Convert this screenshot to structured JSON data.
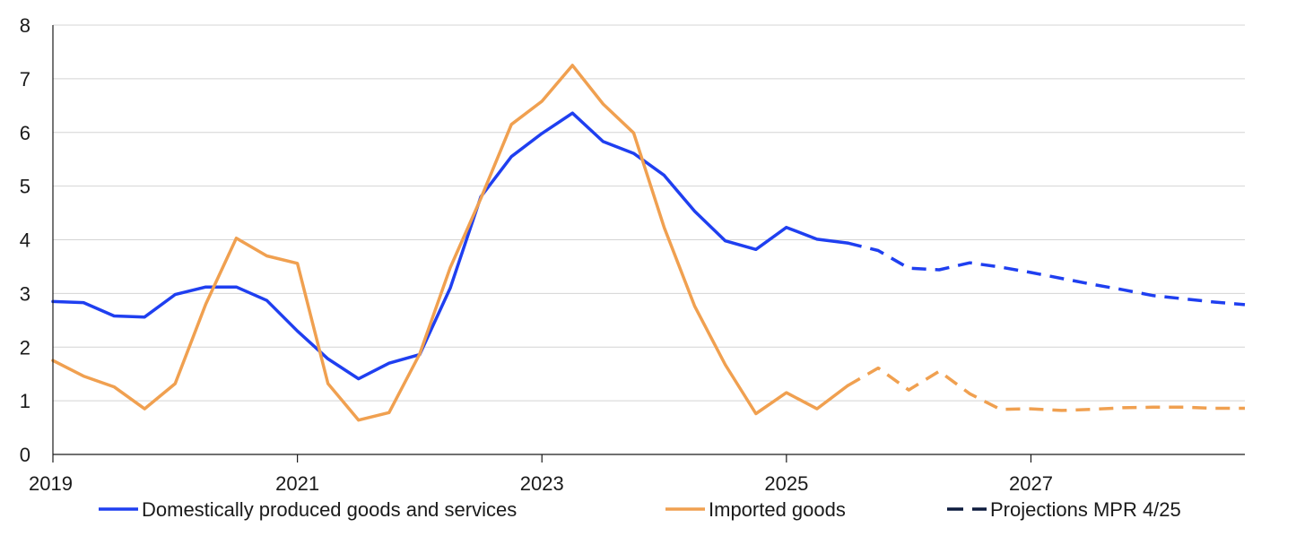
{
  "chart_data": {
    "type": "line",
    "title": "",
    "xlabel": "",
    "ylabel": "",
    "xlim": [
      2019.0,
      2028.75
    ],
    "ylim": [
      0,
      8
    ],
    "y_ticks": [
      0,
      1,
      2,
      3,
      4,
      5,
      6,
      7,
      8
    ],
    "x_ticks": [
      2019,
      2021,
      2023,
      2025,
      2027
    ],
    "x_tick_labels": [
      "2019",
      "2021",
      "2023",
      "2025",
      "2027"
    ],
    "grid": "horizontal",
    "legend_position": "bottom",
    "projection_start": 2025.5,
    "colors": {
      "domestic": "#1f3ff0",
      "imported": "#f0a050",
      "projection_legend": "#0d1b3e",
      "grid": "#d4d4d4",
      "axis": "#1a1a1a"
    },
    "series": [
      {
        "name": "Domestically produced goods and services",
        "color": "#1f3ff0",
        "x": [
          2019.0,
          2019.25,
          2019.5,
          2019.75,
          2020.0,
          2020.25,
          2020.5,
          2020.75,
          2021.0,
          2021.25,
          2021.5,
          2021.75,
          2022.0,
          2022.25,
          2022.5,
          2022.75,
          2023.0,
          2023.25,
          2023.5,
          2023.75,
          2024.0,
          2024.25,
          2024.5,
          2024.75,
          2025.0,
          2025.25,
          2025.5,
          2025.75,
          2026.0,
          2026.25,
          2026.5,
          2026.75,
          2027.0,
          2027.25,
          2027.5,
          2027.75,
          2028.0,
          2028.25,
          2028.5,
          2028.75
        ],
        "values": [
          2.85,
          2.83,
          2.58,
          2.56,
          2.98,
          3.12,
          3.12,
          2.87,
          2.3,
          1.78,
          1.41,
          1.7,
          1.86,
          3.1,
          4.8,
          5.55,
          5.98,
          6.36,
          5.83,
          5.61,
          5.2,
          4.53,
          3.98,
          3.82,
          4.23,
          4.01,
          3.94,
          3.8,
          3.47,
          3.44,
          3.57,
          3.49,
          3.39,
          3.28,
          3.17,
          3.07,
          2.96,
          2.9,
          2.84,
          2.79
        ]
      },
      {
        "name": "Imported goods",
        "color": "#f0a050",
        "x": [
          2019.0,
          2019.25,
          2019.5,
          2019.75,
          2020.0,
          2020.25,
          2020.5,
          2020.75,
          2021.0,
          2021.25,
          2021.5,
          2021.75,
          2022.0,
          2022.25,
          2022.5,
          2022.75,
          2023.0,
          2023.25,
          2023.5,
          2023.75,
          2024.0,
          2024.25,
          2024.5,
          2024.75,
          2025.0,
          2025.25,
          2025.5,
          2025.75,
          2026.0,
          2026.25,
          2026.5,
          2026.75,
          2027.0,
          2027.25,
          2027.5,
          2027.75,
          2028.0,
          2028.25,
          2028.5,
          2028.75
        ],
        "values": [
          1.75,
          1.46,
          1.26,
          0.85,
          1.32,
          2.8,
          4.03,
          3.7,
          3.56,
          1.32,
          0.64,
          0.78,
          1.87,
          3.48,
          4.77,
          6.15,
          6.58,
          7.25,
          6.53,
          5.99,
          4.23,
          2.76,
          1.67,
          0.76,
          1.15,
          0.85,
          1.28,
          1.61,
          1.2,
          1.55,
          1.13,
          0.84,
          0.85,
          0.82,
          0.84,
          0.87,
          0.88,
          0.88,
          0.86,
          0.86
        ]
      }
    ],
    "legend": [
      {
        "label": "Domestically produced goods and services",
        "style": "solid",
        "color": "#1f3ff0"
      },
      {
        "label": "Imported goods",
        "style": "solid",
        "color": "#f0a050"
      },
      {
        "label": "Projections MPR 4/25",
        "style": "dashed",
        "color": "#0d1b3e"
      }
    ]
  }
}
